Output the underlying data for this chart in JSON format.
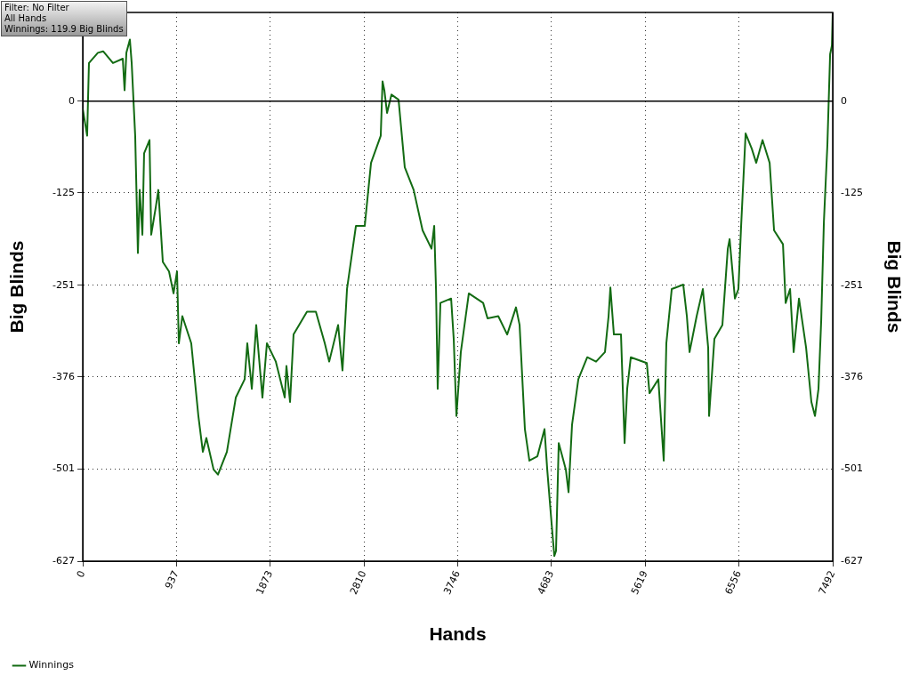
{
  "chart_data": {
    "type": "line",
    "xlabel": "Hands",
    "ylabel": "Big Blinds",
    "y2label": "Big Blinds",
    "annotations": [
      "Filter: No Filter",
      "All Hands",
      "Winnings: 119.9 Big Blinds"
    ],
    "xlim": [
      0,
      7492
    ],
    "xticks": [
      0,
      {
        "value": 936.5,
        "label": "937"
      },
      1873,
      {
        "value": 2809.5,
        "label": "2810"
      },
      3746,
      {
        "value": 4682.5,
        "label": "4683"
      },
      5619,
      {
        "value": 6555.5,
        "label": "6556"
      },
      7492
    ],
    "ylim": [
      -627,
      121
    ],
    "yticks": [
      0,
      -125,
      -251,
      -376,
      -501,
      -627
    ],
    "y2lim": [
      -627,
      121
    ],
    "y2ticks": [
      0,
      -125,
      -251,
      -376,
      -501,
      -627
    ],
    "grid": true,
    "legend": "bottom left",
    "marker": "none",
    "line_style": "solid",
    "ref_lines": [
      {
        "axis": "y",
        "value": 0,
        "color": "#000000"
      }
    ],
    "series": [
      {
        "name": "Winnings",
        "color": "#136b13",
        "x": [
          0,
          44,
          62,
          151,
          204,
          302,
          400,
          418,
          436,
          471,
          489,
          524,
          551,
          569,
          596,
          613,
          667,
          684,
          729,
          755,
          800,
          862,
          907,
          942,
          960,
          995,
          1084,
          1155,
          1200,
          1235,
          1307,
          1351,
          1440,
          1529,
          1618,
          1644,
          1689,
          1733,
          1795,
          1840,
          1929,
          2018,
          2035,
          2071,
          2106,
          2240,
          2329,
          2418,
          2462,
          2551,
          2595,
          2640,
          2729,
          2817,
          2880,
          2977,
          2995,
          3013,
          3040,
          3084,
          3155,
          3217,
          3306,
          3395,
          3484,
          3511,
          3529,
          3546,
          3573,
          3680,
          3706,
          3733,
          3777,
          3857,
          4000,
          4044,
          4151,
          4240,
          4328,
          4364,
          4417,
          4462,
          4542,
          4613,
          4640,
          4684,
          4711,
          4728,
          4755,
          4826,
          4853,
          4888,
          4951,
          5040,
          5128,
          5217,
          5253,
          5271,
          5306,
          5377,
          5413,
          5439,
          5475,
          5635,
          5662,
          5750,
          5804,
          5830,
          5884,
          5999,
          6035,
          6062,
          6133,
          6195,
          6248,
          6257,
          6310,
          6390,
          6444,
          6462,
          6515,
          6550,
          6577,
          6622,
          6684,
          6728,
          6791,
          6862,
          6906,
          6995,
          7022,
          7066,
          7102,
          7155,
          7226,
          7279,
          7315,
          7350,
          7377,
          7404,
          7439,
          7466,
          7484,
          7492
        ],
        "values": [
          -10,
          -47,
          52,
          66,
          68,
          52,
          58,
          15,
          66,
          84,
          52,
          -47,
          -207,
          -121,
          -182,
          -71,
          -53,
          -182,
          -145,
          -121,
          -219,
          -232,
          -262,
          -232,
          -330,
          -293,
          -330,
          -429,
          -478,
          -459,
          -502,
          -509,
          -478,
          -404,
          -379,
          -330,
          -392,
          -305,
          -404,
          -330,
          -355,
          -404,
          -361,
          -410,
          -318,
          -287,
          -287,
          -330,
          -355,
          -305,
          -367,
          -256,
          -170,
          -170,
          -84,
          -47,
          27,
          15,
          -16,
          9,
          2,
          -90,
          -121,
          -176,
          -201,
          -170,
          -256,
          -392,
          -275,
          -269,
          -324,
          -429,
          -342,
          -262,
          -275,
          -296,
          -293,
          -318,
          -281,
          -305,
          -447,
          -490,
          -484,
          -447,
          -502,
          -576,
          -620,
          -613,
          -466,
          -502,
          -533,
          -441,
          -379,
          -349,
          -355,
          -342,
          -293,
          -254,
          -318,
          -318,
          -466,
          -392,
          -349,
          -357,
          -398,
          -379,
          -490,
          -330,
          -256,
          -250,
          -293,
          -342,
          -293,
          -256,
          -336,
          -429,
          -324,
          -305,
          -201,
          -188,
          -269,
          -256,
          -170,
          -44,
          -65,
          -84,
          -53,
          -84,
          -176,
          -195,
          -275,
          -256,
          -342,
          -269,
          -336,
          -410,
          -429,
          -392,
          -299,
          -164,
          -59,
          64,
          76,
          120
        ]
      }
    ]
  }
}
